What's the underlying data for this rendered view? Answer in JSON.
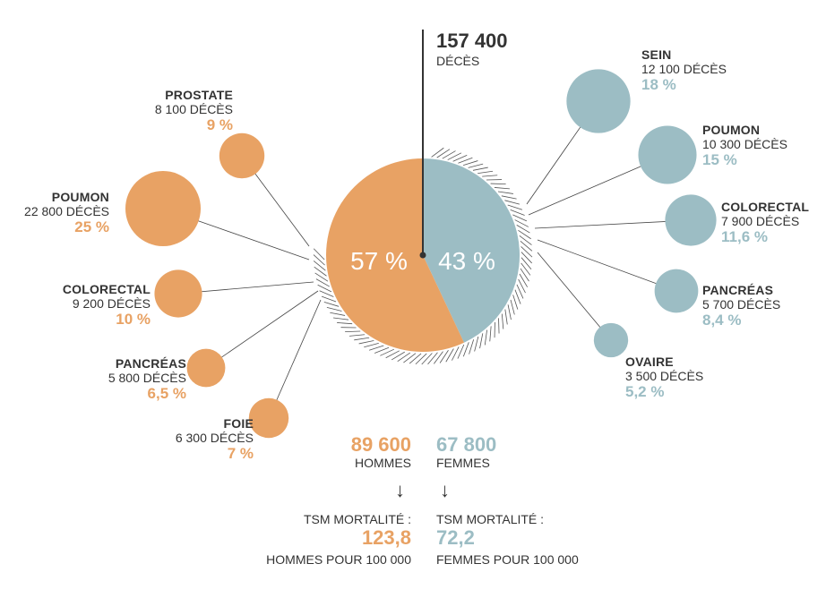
{
  "chart_data": {
    "type": "pie",
    "total": {
      "value": "157 400",
      "label": "DÉCÈS"
    },
    "slices": [
      {
        "label": "57 %",
        "value": 57,
        "color": "#e8a264"
      },
      {
        "label": "43 %",
        "value": 43,
        "color": "#9cbdc4"
      }
    ],
    "men_sites": [
      {
        "name": "PROSTATE",
        "deaths": "8 100 DÉCÈS",
        "pct": "9 %",
        "value": 9
      },
      {
        "name": "POUMON",
        "deaths": "22 800 DÉCÈS",
        "pct": "25 %",
        "value": 25
      },
      {
        "name": "COLORECTAL",
        "deaths": "9 200 DÉCÈS",
        "pct": "10 %",
        "value": 10
      },
      {
        "name": "PANCRÉAS",
        "deaths": "5 800 DÉCÈS",
        "pct": "6,5 %",
        "value": 6.5
      },
      {
        "name": "FOIE",
        "deaths": "6 300 DÉCÈS",
        "pct": "7 %",
        "value": 7
      }
    ],
    "women_sites": [
      {
        "name": "SEIN",
        "deaths": "12 100 DÉCÈS",
        "pct": "18 %",
        "value": 18
      },
      {
        "name": "POUMON",
        "deaths": "10 300 DÉCÈS",
        "pct": "15 %",
        "value": 15
      },
      {
        "name": "COLORECTAL",
        "deaths": "7 900 DÉCÈS",
        "pct": "11,6 %",
        "value": 11.6
      },
      {
        "name": "PANCRÉAS",
        "deaths": "5 700 DÉCÈS",
        "pct": "8,4 %",
        "value": 8.4
      },
      {
        "name": "OVAIRE",
        "deaths": "3 500 DÉCÈS",
        "pct": "5,2 %",
        "value": 5.2
      }
    ],
    "men": {
      "count": "89 600",
      "label": "HOMMES",
      "tsm_label": "TSM MORTALITÉ :",
      "tsm_value": "123,8",
      "tsm_unit": "HOMMES POUR 100 000"
    },
    "women": {
      "count": "67 800",
      "label": "FEMMES",
      "tsm_label": "TSM MORTALITÉ :",
      "tsm_value": "72,2",
      "tsm_unit": "FEMMES POUR 100 000"
    },
    "colors": {
      "men": "#e8a264",
      "women": "#9cbdc4",
      "hatch": "#555555",
      "line": "#444444"
    }
  },
  "icons": {
    "down_arrow": "arrow-down-icon"
  }
}
